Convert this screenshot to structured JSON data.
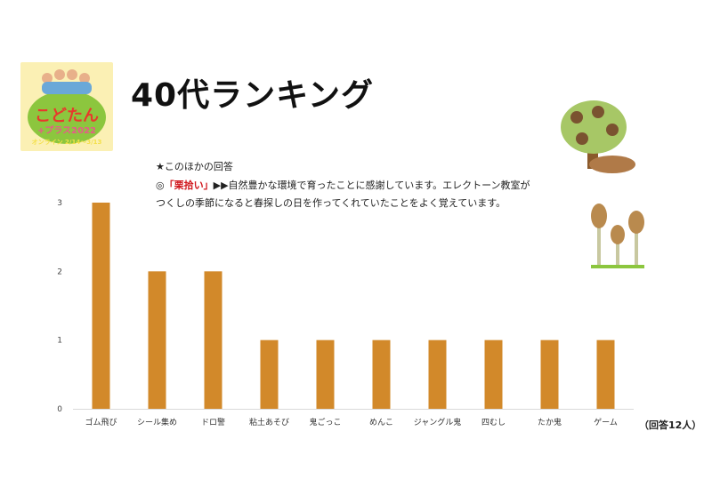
{
  "title": "40代ランキング",
  "logo": {
    "text_line1": "こどたん",
    "text_line2": "+プラス2022",
    "text_line3": "オンライン 2/14〜3/13"
  },
  "note": {
    "heading": "★このほかの回答",
    "prefix": "◎",
    "highlight": "「栗拾い」",
    "line1_rest": "▶▶自然豊かな環境で育ったことに感謝しています。エレクトーン教室が",
    "line2": "つくしの季節になると春探しの日を作ってくれていたことをよく覚えています。"
  },
  "respondents": "（回答12人）",
  "colors": {
    "bar": "#d2892a",
    "axis": "#d9d9d9"
  },
  "chart_data": {
    "type": "bar",
    "title": "40代ランキング",
    "categories": [
      "ゴム飛び",
      "シール集め",
      "ドロ警",
      "粘土あそび",
      "鬼ごっこ",
      "めんこ",
      "ジャングル鬼",
      "四むし",
      "たか鬼",
      "ゲーム"
    ],
    "values": [
      3,
      2,
      2,
      1,
      1,
      1,
      1,
      1,
      1,
      1
    ],
    "yticks": [
      0,
      1,
      2,
      3
    ],
    "ylim": [
      0,
      3
    ],
    "grid": false,
    "xlabel": "",
    "ylabel": ""
  }
}
